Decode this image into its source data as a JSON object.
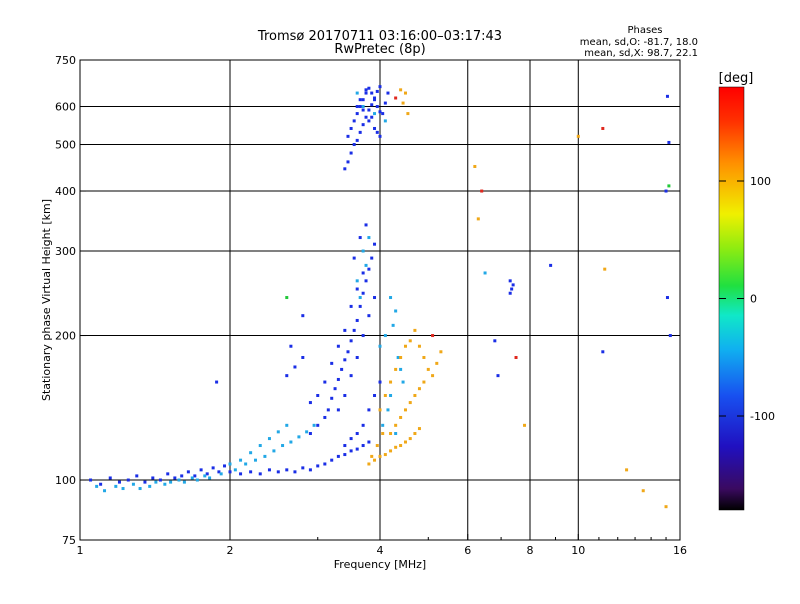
{
  "chart_data": {
    "type": "scatter",
    "title": "Tromsø 20170711 03:16:00–03:17:43",
    "subtitle": "RwPretec (8p)",
    "xlabel": "Frequency [MHz]",
    "ylabel": "Stationary phase Virtual Height [km]",
    "x_scale": "log",
    "y_scale": "log",
    "xlim": [
      1,
      16
    ],
    "ylim": [
      75,
      750
    ],
    "x_ticks": [
      1,
      2,
      4,
      6,
      8,
      10,
      16
    ],
    "x_tick_labels": [
      "1",
      "2",
      "4",
      "6",
      "8",
      "10",
      "16"
    ],
    "x_grid": [
      2,
      4,
      6,
      8,
      10
    ],
    "y_ticks": [
      75,
      100,
      200,
      300,
      400,
      500,
      600,
      750
    ],
    "y_tick_labels": [
      "75",
      "100",
      "200",
      "300",
      "400",
      "500",
      "600",
      "750"
    ],
    "y_grid": [
      100,
      200,
      300,
      400,
      500,
      600
    ],
    "legend": {
      "title": "Phases",
      "lines": [
        "mean, sd,O: -81.7, 18.0",
        "mean, sd,X: 98.7, 22.1"
      ]
    },
    "colorbar": {
      "label": "[deg]",
      "range": [
        -180,
        180
      ],
      "ticks": [
        100,
        0,
        -100
      ],
      "tick_labels": [
        "100",
        "0",
        "-100"
      ]
    },
    "series": [
      {
        "name": "O-mode (blue)",
        "color": "#1a2ee6",
        "points": [
          [
            1.05,
            100
          ],
          [
            1.1,
            98
          ],
          [
            1.15,
            101
          ],
          [
            1.2,
            99
          ],
          [
            1.25,
            100
          ],
          [
            1.3,
            102
          ],
          [
            1.35,
            99
          ],
          [
            1.4,
            101
          ],
          [
            1.45,
            100
          ],
          [
            1.5,
            103
          ],
          [
            1.55,
            101
          ],
          [
            1.6,
            102
          ],
          [
            1.65,
            104
          ],
          [
            1.7,
            102
          ],
          [
            1.75,
            105
          ],
          [
            1.8,
            103
          ],
          [
            1.85,
            106
          ],
          [
            1.9,
            104
          ],
          [
            1.95,
            107
          ],
          [
            2.0,
            104
          ],
          [
            2.1,
            103
          ],
          [
            2.2,
            104
          ],
          [
            2.3,
            103
          ],
          [
            2.4,
            105
          ],
          [
            2.5,
            104
          ],
          [
            2.6,
            105
          ],
          [
            2.7,
            104
          ],
          [
            2.8,
            106
          ],
          [
            2.9,
            105
          ],
          [
            3.0,
            107
          ],
          [
            3.1,
            108
          ],
          [
            3.2,
            110
          ],
          [
            3.3,
            112
          ],
          [
            3.4,
            113
          ],
          [
            3.5,
            115
          ],
          [
            3.6,
            116
          ],
          [
            3.7,
            118
          ],
          [
            3.8,
            120
          ],
          [
            2.9,
            125
          ],
          [
            3.0,
            130
          ],
          [
            3.1,
            135
          ],
          [
            3.15,
            140
          ],
          [
            3.2,
            148
          ],
          [
            3.25,
            155
          ],
          [
            3.3,
            162
          ],
          [
            3.35,
            170
          ],
          [
            3.4,
            178
          ],
          [
            3.45,
            185
          ],
          [
            3.5,
            195
          ],
          [
            3.55,
            205
          ],
          [
            3.6,
            215
          ],
          [
            3.65,
            230
          ],
          [
            3.7,
            245
          ],
          [
            3.75,
            260
          ],
          [
            3.8,
            275
          ],
          [
            3.85,
            290
          ],
          [
            3.9,
            310
          ],
          [
            3.3,
            140
          ],
          [
            3.4,
            150
          ],
          [
            3.5,
            165
          ],
          [
            3.6,
            180
          ],
          [
            3.7,
            200
          ],
          [
            3.8,
            220
          ],
          [
            3.9,
            240
          ],
          [
            3.6,
            250
          ],
          [
            3.7,
            270
          ],
          [
            3.55,
            290
          ],
          [
            3.65,
            320
          ],
          [
            3.75,
            340
          ],
          [
            3.5,
            230
          ],
          [
            3.4,
            205
          ],
          [
            3.3,
            190
          ],
          [
            3.2,
            175
          ],
          [
            3.1,
            160
          ],
          [
            3.0,
            150
          ],
          [
            2.9,
            145
          ],
          [
            3.7,
            130
          ],
          [
            3.8,
            140
          ],
          [
            3.9,
            150
          ],
          [
            4.0,
            160
          ],
          [
            3.6,
            125
          ],
          [
            3.5,
            122
          ],
          [
            3.4,
            118
          ],
          [
            2.6,
            165
          ],
          [
            2.7,
            172
          ],
          [
            2.8,
            180
          ],
          [
            2.65,
            190
          ],
          [
            1.88,
            160
          ],
          [
            2.8,
            220
          ],
          [
            3.45,
            520
          ],
          [
            3.5,
            540
          ],
          [
            3.55,
            560
          ],
          [
            3.6,
            580
          ],
          [
            3.65,
            600
          ],
          [
            3.7,
            620
          ],
          [
            3.75,
            640
          ],
          [
            3.8,
            655
          ],
          [
            3.85,
            640
          ],
          [
            3.9,
            620
          ],
          [
            3.95,
            600
          ],
          [
            4.0,
            585
          ],
          [
            3.55,
            500
          ],
          [
            3.6,
            510
          ],
          [
            3.65,
            530
          ],
          [
            3.7,
            550
          ],
          [
            3.75,
            570
          ],
          [
            3.8,
            590
          ],
          [
            3.85,
            605
          ],
          [
            3.9,
            625
          ],
          [
            3.95,
            645
          ],
          [
            4.0,
            660
          ],
          [
            3.5,
            480
          ],
          [
            3.45,
            460
          ],
          [
            3.4,
            445
          ],
          [
            3.6,
            600
          ],
          [
            3.7,
            590
          ],
          [
            3.8,
            560
          ],
          [
            3.9,
            540
          ],
          [
            4.0,
            520
          ],
          [
            4.1,
            610
          ],
          [
            4.15,
            640
          ],
          [
            4.05,
            580
          ],
          [
            3.65,
            620
          ],
          [
            3.75,
            650
          ],
          [
            3.85,
            570
          ],
          [
            3.95,
            530
          ],
          [
            7.3,
            260
          ],
          [
            7.35,
            250
          ],
          [
            7.4,
            255
          ],
          [
            7.3,
            245
          ],
          [
            8.8,
            280
          ],
          [
            6.8,
            195
          ],
          [
            6.9,
            165
          ],
          [
            11.2,
            185
          ],
          [
            15.2,
            505
          ],
          [
            15.1,
            630
          ],
          [
            15.0,
            400
          ],
          [
            15.1,
            240
          ],
          [
            15.3,
            200
          ]
        ]
      },
      {
        "name": "light blue / cyan",
        "color": "#22a8e6",
        "points": [
          [
            1.08,
            97
          ],
          [
            1.12,
            95
          ],
          [
            1.18,
            97
          ],
          [
            1.22,
            96
          ],
          [
            1.28,
            98
          ],
          [
            1.32,
            96
          ],
          [
            1.38,
            97
          ],
          [
            1.42,
            99
          ],
          [
            1.48,
            98
          ],
          [
            1.52,
            99
          ],
          [
            1.58,
            100
          ],
          [
            1.62,
            99
          ],
          [
            1.68,
            101
          ],
          [
            1.72,
            100
          ],
          [
            1.78,
            102
          ],
          [
            1.82,
            101
          ],
          [
            1.92,
            103
          ],
          [
            2.05,
            105
          ],
          [
            2.15,
            108
          ],
          [
            2.25,
            110
          ],
          [
            2.35,
            112
          ],
          [
            2.45,
            115
          ],
          [
            2.55,
            118
          ],
          [
            2.65,
            120
          ],
          [
            2.75,
            123
          ],
          [
            2.85,
            126
          ],
          [
            2.95,
            130
          ],
          [
            2.3,
            118
          ],
          [
            2.4,
            122
          ],
          [
            2.5,
            126
          ],
          [
            2.6,
            130
          ],
          [
            2.2,
            114
          ],
          [
            2.1,
            110
          ],
          [
            2.0,
            108
          ],
          [
            3.6,
            260
          ],
          [
            3.7,
            300
          ],
          [
            3.8,
            320
          ],
          [
            3.75,
            280
          ],
          [
            3.65,
            240
          ],
          [
            4.2,
            240
          ],
          [
            4.3,
            225
          ],
          [
            4.25,
            210
          ],
          [
            4.1,
            200
          ],
          [
            4.0,
            190
          ],
          [
            4.35,
            180
          ],
          [
            4.4,
            170
          ],
          [
            4.45,
            160
          ],
          [
            4.2,
            150
          ],
          [
            4.15,
            140
          ],
          [
            4.05,
            130
          ],
          [
            4.3,
            125
          ],
          [
            3.6,
            640
          ],
          [
            3.7,
            600
          ],
          [
            3.9,
            580
          ],
          [
            4.1,
            560
          ],
          [
            6.5,
            270
          ]
        ]
      },
      {
        "name": "X-mode (orange/yellow)",
        "color": "#f0a818",
        "points": [
          [
            3.8,
            108
          ],
          [
            3.9,
            110
          ],
          [
            4.0,
            112
          ],
          [
            4.1,
            113
          ],
          [
            4.2,
            115
          ],
          [
            4.3,
            117
          ],
          [
            4.4,
            118
          ],
          [
            4.5,
            120
          ],
          [
            4.6,
            122
          ],
          [
            4.7,
            125
          ],
          [
            4.8,
            128
          ],
          [
            4.2,
            125
          ],
          [
            4.3,
            130
          ],
          [
            4.4,
            135
          ],
          [
            4.5,
            140
          ],
          [
            4.6,
            145
          ],
          [
            4.7,
            150
          ],
          [
            4.8,
            155
          ],
          [
            4.9,
            160
          ],
          [
            4.0,
            140
          ],
          [
            4.1,
            150
          ],
          [
            4.2,
            160
          ],
          [
            4.3,
            170
          ],
          [
            4.4,
            180
          ],
          [
            4.5,
            190
          ],
          [
            4.6,
            195
          ],
          [
            4.7,
            205
          ],
          [
            4.8,
            190
          ],
          [
            4.9,
            180
          ],
          [
            5.0,
            170
          ],
          [
            5.1,
            165
          ],
          [
            5.3,
            185
          ],
          [
            5.2,
            175
          ],
          [
            4.05,
            125
          ],
          [
            3.95,
            118
          ],
          [
            3.85,
            112
          ],
          [
            4.45,
            610
          ],
          [
            4.5,
            640
          ],
          [
            4.55,
            580
          ],
          [
            4.4,
            650
          ],
          [
            6.2,
            450
          ],
          [
            6.3,
            350
          ],
          [
            12.5,
            105
          ],
          [
            13.5,
            95
          ],
          [
            15.0,
            88
          ],
          [
            10.0,
            520
          ],
          [
            11.3,
            275
          ],
          [
            7.8,
            130
          ]
        ]
      },
      {
        "name": "red / misc",
        "color": "#e0281e",
        "points": [
          [
            4.3,
            625
          ],
          [
            6.4,
            400
          ],
          [
            7.5,
            180
          ],
          [
            11.2,
            540
          ],
          [
            5.1,
            200
          ]
        ]
      },
      {
        "name": "green",
        "color": "#22c83a",
        "points": [
          [
            2.6,
            240
          ],
          [
            15.2,
            410
          ]
        ]
      }
    ]
  }
}
